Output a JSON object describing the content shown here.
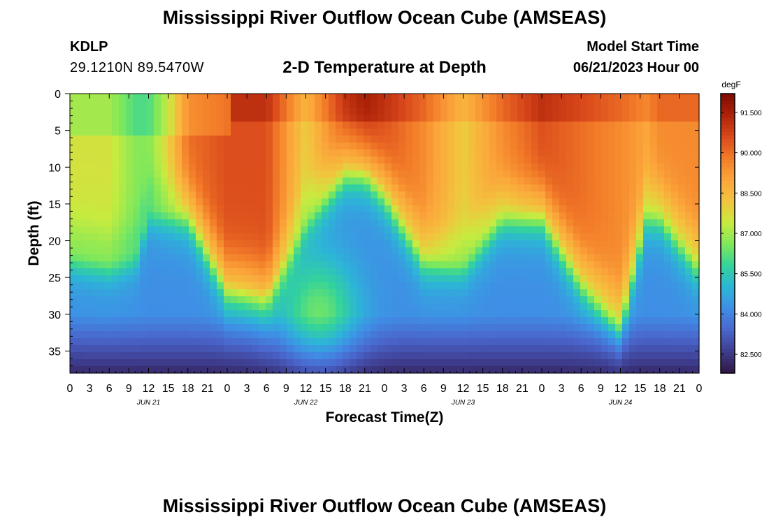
{
  "header": {
    "title": "Mississippi River Outflow Ocean Cube (AMSEAS)",
    "station": "KDLP",
    "coords": "29.1210N  89.5470W",
    "subtitle": "2-D Temperature at Depth",
    "model_label": "Model Start Time",
    "model_time": "06/21/2023 Hour 00"
  },
  "footer": {
    "title": "Mississippi River Outflow Ocean Cube (AMSEAS)"
  },
  "chart_data": {
    "type": "heatmap",
    "title": "2-D Temperature at Depth",
    "xlabel": "Forecast Time(Z)",
    "ylabel": "Depth (ft)",
    "x_tick_labels": [
      "0",
      "3",
      "6",
      "9",
      "12",
      "15",
      "18",
      "21",
      "0",
      "3",
      "6",
      "9",
      "12",
      "15",
      "18",
      "21",
      "0",
      "3",
      "6",
      "9",
      "12",
      "15",
      "18",
      "21",
      "0",
      "3",
      "6",
      "9",
      "12",
      "15",
      "18",
      "21",
      "0"
    ],
    "date_labels": [
      {
        "label": "JUN 21",
        "hour": 12
      },
      {
        "label": "JUN 22",
        "hour": 36
      },
      {
        "label": "JUN 23",
        "hour": 60
      },
      {
        "label": "JUN 24",
        "hour": 84
      }
    ],
    "xlim_hours": [
      0,
      96
    ],
    "y_ticks": [
      0,
      5,
      10,
      15,
      20,
      25,
      30,
      35
    ],
    "ylim": [
      0,
      38
    ],
    "y_inverted": true,
    "colorbar": {
      "unit": "degF",
      "ticks": [
        "91.500",
        "90.000",
        "88.500",
        "87.000",
        "85.500",
        "84.000",
        "82.500"
      ],
      "range": [
        81.8,
        92.2
      ]
    },
    "colormap": [
      "#2f1645",
      "#3e3d8e",
      "#4a66cc",
      "#3f8ee6",
      "#2cb5d7",
      "#33d39b",
      "#7fe85b",
      "#c8eb3f",
      "#f3c33e",
      "#fba53a",
      "#f27b28",
      "#d9481b",
      "#ad2309",
      "#7e0a04"
    ],
    "field_description": {
      "hour_samples": [
        0,
        6,
        10,
        12,
        15,
        18,
        24,
        30,
        36,
        42,
        45,
        48,
        54,
        60,
        66,
        72,
        78,
        84,
        88,
        90,
        96
      ],
      "warm_to_cool_boundary_depth_ft": [
        22,
        23,
        22,
        16,
        16,
        16,
        26,
        27,
        17,
        10,
        10,
        13,
        22,
        23,
        16,
        16,
        25,
        31,
        16,
        16,
        23
      ],
      "mid_layer_temp_degF": [
        87.6,
        87.6,
        86.7,
        86.7,
        88.0,
        90.0,
        90.5,
        90.5,
        88.0,
        90.5,
        91.0,
        90.5,
        89.5,
        88.0,
        89.5,
        90.5,
        90.0,
        89.5,
        89.0,
        89.5,
        89.5
      ]
    }
  }
}
